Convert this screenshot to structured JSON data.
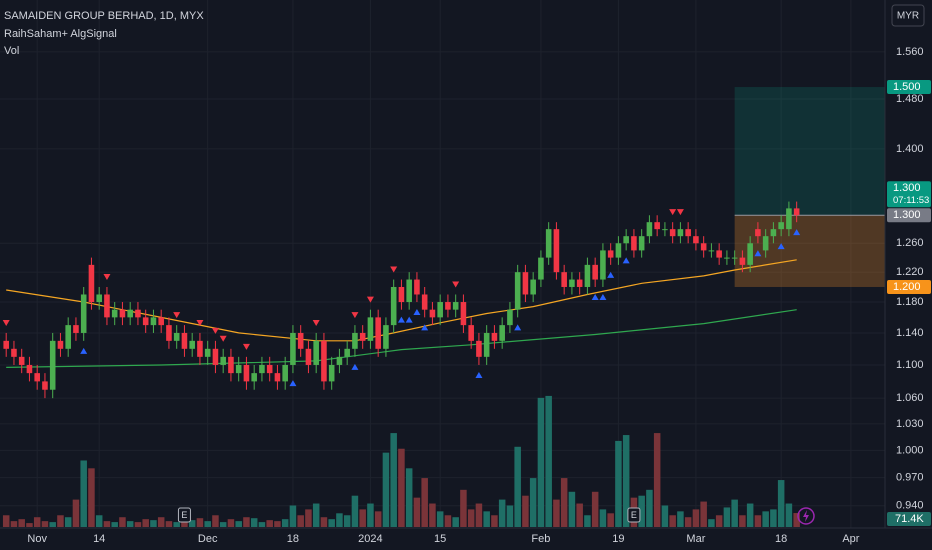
{
  "chart_data": {
    "type": "candlestick",
    "title": "SAMAIDEN GROUP BERHAD, 1D, MYX",
    "indicator": "RaihSaham+ AlgSignal",
    "volume_title": "Vol",
    "currency": "MYR",
    "log_scale": true,
    "grid": true,
    "grid_color": "#1e222d",
    "up_color": "#4caf50",
    "down_color": "#f23645",
    "volume_up_color": "#1f6f66",
    "volume_down_color": "#7a3439",
    "xlim": [
      -0.8,
      113.4
    ],
    "ylim": [
      0.917,
      1.653
    ],
    "volume_lim": [
      0,
      1150000
    ],
    "xticks": [
      {
        "value": 4,
        "label": "Nov"
      },
      {
        "value": 12,
        "label": "14"
      },
      {
        "value": 26,
        "label": "Dec"
      },
      {
        "value": 37,
        "label": "18"
      },
      {
        "value": 47,
        "label": "2024"
      },
      {
        "value": 56,
        "label": "15"
      },
      {
        "value": 69,
        "label": "Feb"
      },
      {
        "value": 79,
        "label": "19"
      },
      {
        "value": 89,
        "label": "Mar"
      },
      {
        "value": 100,
        "label": "18"
      },
      {
        "value": 109,
        "label": "Apr"
      }
    ],
    "yticks": [
      {
        "value": 0.94,
        "label": "0.940"
      },
      {
        "value": 0.97,
        "label": "0.970"
      },
      {
        "value": 1.0,
        "label": "1.000"
      },
      {
        "value": 1.03,
        "label": "1.030"
      },
      {
        "value": 1.06,
        "label": "1.060"
      },
      {
        "value": 1.1,
        "label": "1.100"
      },
      {
        "value": 1.14,
        "label": "1.140"
      },
      {
        "value": 1.18,
        "label": "1.180"
      },
      {
        "value": 1.22,
        "label": "1.220"
      },
      {
        "value": 1.26,
        "label": "1.260"
      },
      {
        "value": 1.4,
        "label": "1.400"
      },
      {
        "value": 1.48,
        "label": "1.480"
      },
      {
        "value": 1.56,
        "label": "1.560"
      }
    ],
    "open": [
      1.13,
      1.12,
      1.11,
      1.1,
      1.09,
      1.08,
      1.07,
      1.13,
      1.12,
      1.15,
      1.14,
      1.23,
      1.18,
      1.19,
      1.16,
      1.17,
      1.16,
      1.17,
      1.16,
      1.15,
      1.16,
      1.15,
      1.13,
      1.14,
      1.12,
      1.13,
      1.11,
      1.12,
      1.1,
      1.11,
      1.09,
      1.1,
      1.08,
      1.09,
      1.1,
      1.09,
      1.08,
      1.1,
      1.14,
      1.12,
      1.1,
      1.13,
      1.08,
      1.1,
      1.11,
      1.12,
      1.14,
      1.13,
      1.16,
      1.12,
      1.15,
      1.2,
      1.18,
      1.21,
      1.19,
      1.17,
      1.16,
      1.18,
      1.17,
      1.18,
      1.15,
      1.13,
      1.11,
      1.14,
      1.13,
      1.15,
      1.17,
      1.22,
      1.19,
      1.21,
      1.24,
      1.28,
      1.22,
      1.2,
      1.21,
      1.2,
      1.23,
      1.21,
      1.25,
      1.24,
      1.26,
      1.27,
      1.25,
      1.27,
      1.29,
      1.28,
      1.28,
      1.27,
      1.28,
      1.27,
      1.26,
      1.25,
      1.25,
      1.24,
      1.24,
      1.24,
      1.23,
      1.28,
      1.25,
      1.27,
      1.28,
      1.28,
      1.31
    ],
    "high": [
      1.14,
      1.13,
      1.12,
      1.11,
      1.1,
      1.09,
      1.14,
      1.14,
      1.16,
      1.16,
      1.2,
      1.24,
      1.2,
      1.2,
      1.18,
      1.18,
      1.18,
      1.18,
      1.17,
      1.17,
      1.17,
      1.16,
      1.15,
      1.15,
      1.14,
      1.14,
      1.13,
      1.13,
      1.12,
      1.12,
      1.11,
      1.11,
      1.1,
      1.11,
      1.11,
      1.1,
      1.11,
      1.15,
      1.15,
      1.13,
      1.14,
      1.14,
      1.11,
      1.12,
      1.13,
      1.15,
      1.15,
      1.17,
      1.17,
      1.16,
      1.21,
      1.21,
      1.22,
      1.22,
      1.2,
      1.18,
      1.19,
      1.19,
      1.19,
      1.19,
      1.16,
      1.14,
      1.15,
      1.15,
      1.16,
      1.18,
      1.23,
      1.23,
      1.22,
      1.25,
      1.29,
      1.29,
      1.23,
      1.22,
      1.22,
      1.24,
      1.24,
      1.26,
      1.26,
      1.27,
      1.28,
      1.28,
      1.28,
      1.3,
      1.3,
      1.29,
      1.29,
      1.29,
      1.29,
      1.28,
      1.27,
      1.26,
      1.26,
      1.25,
      1.25,
      1.25,
      1.27,
      1.29,
      1.28,
      1.29,
      1.3,
      1.32,
      1.32
    ],
    "low": [
      1.11,
      1.1,
      1.09,
      1.08,
      1.07,
      1.06,
      1.06,
      1.11,
      1.11,
      1.13,
      1.13,
      1.17,
      1.17,
      1.15,
      1.15,
      1.15,
      1.15,
      1.15,
      1.14,
      1.14,
      1.14,
      1.12,
      1.12,
      1.11,
      1.11,
      1.1,
      1.1,
      1.09,
      1.09,
      1.08,
      1.08,
      1.07,
      1.07,
      1.08,
      1.08,
      1.07,
      1.07,
      1.09,
      1.11,
      1.09,
      1.09,
      1.07,
      1.07,
      1.09,
      1.1,
      1.11,
      1.12,
      1.12,
      1.11,
      1.11,
      1.14,
      1.17,
      1.17,
      1.18,
      1.16,
      1.15,
      1.15,
      1.16,
      1.16,
      1.14,
      1.12,
      1.1,
      1.1,
      1.12,
      1.12,
      1.14,
      1.16,
      1.18,
      1.18,
      1.2,
      1.23,
      1.21,
      1.19,
      1.19,
      1.19,
      1.19,
      1.2,
      1.2,
      1.23,
      1.23,
      1.25,
      1.24,
      1.24,
      1.26,
      1.27,
      1.27,
      1.26,
      1.26,
      1.26,
      1.25,
      1.24,
      1.24,
      1.23,
      1.23,
      1.23,
      1.22,
      1.22,
      1.26,
      1.24,
      1.26,
      1.27,
      1.27,
      1.29
    ],
    "close": [
      1.12,
      1.11,
      1.1,
      1.09,
      1.08,
      1.07,
      1.13,
      1.12,
      1.15,
      1.14,
      1.19,
      1.18,
      1.19,
      1.16,
      1.17,
      1.16,
      1.17,
      1.16,
      1.15,
      1.16,
      1.15,
      1.13,
      1.14,
      1.12,
      1.13,
      1.11,
      1.12,
      1.1,
      1.11,
      1.09,
      1.1,
      1.08,
      1.09,
      1.1,
      1.09,
      1.08,
      1.1,
      1.14,
      1.12,
      1.1,
      1.13,
      1.08,
      1.1,
      1.11,
      1.12,
      1.14,
      1.13,
      1.16,
      1.12,
      1.15,
      1.2,
      1.18,
      1.21,
      1.19,
      1.17,
      1.16,
      1.18,
      1.17,
      1.18,
      1.15,
      1.13,
      1.11,
      1.14,
      1.13,
      1.15,
      1.17,
      1.22,
      1.19,
      1.21,
      1.24,
      1.28,
      1.22,
      1.2,
      1.21,
      1.2,
      1.23,
      1.21,
      1.25,
      1.24,
      1.26,
      1.27,
      1.25,
      1.27,
      1.29,
      1.28,
      1.28,
      1.27,
      1.28,
      1.27,
      1.26,
      1.25,
      1.25,
      1.24,
      1.24,
      1.24,
      1.23,
      1.26,
      1.27,
      1.27,
      1.28,
      1.29,
      1.31,
      1.3
    ],
    "volume": [
      60000,
      30000,
      40000,
      20000,
      50000,
      30000,
      25000,
      60000,
      50000,
      140000,
      340000,
      300000,
      60000,
      30000,
      25000,
      50000,
      30000,
      25000,
      40000,
      35000,
      50000,
      30000,
      25000,
      40000,
      35000,
      45000,
      30000,
      60000,
      25000,
      40000,
      30000,
      50000,
      45000,
      25000,
      35000,
      30000,
      40000,
      110000,
      60000,
      90000,
      120000,
      50000,
      40000,
      70000,
      60000,
      160000,
      90000,
      120000,
      80000,
      380000,
      480000,
      400000,
      300000,
      150000,
      250000,
      120000,
      80000,
      60000,
      50000,
      190000,
      90000,
      120000,
      80000,
      60000,
      140000,
      110000,
      410000,
      160000,
      250000,
      660000,
      670000,
      140000,
      250000,
      180000,
      120000,
      60000,
      180000,
      90000,
      70000,
      440000,
      470000,
      150000,
      160000,
      190000,
      480000,
      110000,
      60000,
      80000,
      50000,
      90000,
      130000,
      40000,
      60000,
      100000,
      140000,
      60000,
      120000,
      60000,
      80000,
      90000,
      240000,
      120000,
      71400
    ],
    "last_volume_label": "71.4K",
    "moving_averages": [
      {
        "color": "#f5a623",
        "x": [
          0,
          10,
          20,
          30,
          40,
          45,
          50,
          56,
          62,
          68,
          75,
          82,
          90,
          94,
          98,
          102
        ],
        "values": [
          1.196,
          1.18,
          1.16,
          1.14,
          1.13,
          1.13,
          1.14,
          1.153,
          1.165,
          1.174,
          1.19,
          1.205,
          1.215,
          1.223,
          1.23,
          1.237
        ]
      },
      {
        "color": "#2fa84f",
        "x": [
          0,
          20,
          40,
          51,
          60,
          76,
          90,
          102
        ],
        "values": [
          1.097,
          1.1,
          1.105,
          1.119,
          1.125,
          1.138,
          1.152,
          1.17
        ]
      }
    ],
    "buy_signals": [
      10,
      37,
      45,
      51,
      52,
      53,
      54,
      61,
      66,
      76,
      77,
      78,
      80,
      97,
      100,
      102
    ],
    "sell_signals": [
      0,
      13,
      22,
      25,
      27,
      28,
      31,
      40,
      45,
      47,
      50,
      58,
      86,
      87
    ],
    "buy_color": "#2962ff",
    "sell_color": "#f23645",
    "earnings": [
      {
        "index": 23,
        "label": "E"
      },
      {
        "index": 81,
        "label": "E"
      }
    ],
    "position": {
      "start_index": 94,
      "target": {
        "value": 1.5,
        "label": "1.500"
      },
      "entry": {
        "value": 1.3,
        "label": "1.300"
      },
      "stop": {
        "value": 1.2,
        "label": "1.200"
      }
    },
    "last_price": {
      "value": 1.3,
      "label": "1.300",
      "countdown": "07:11:53"
    }
  }
}
